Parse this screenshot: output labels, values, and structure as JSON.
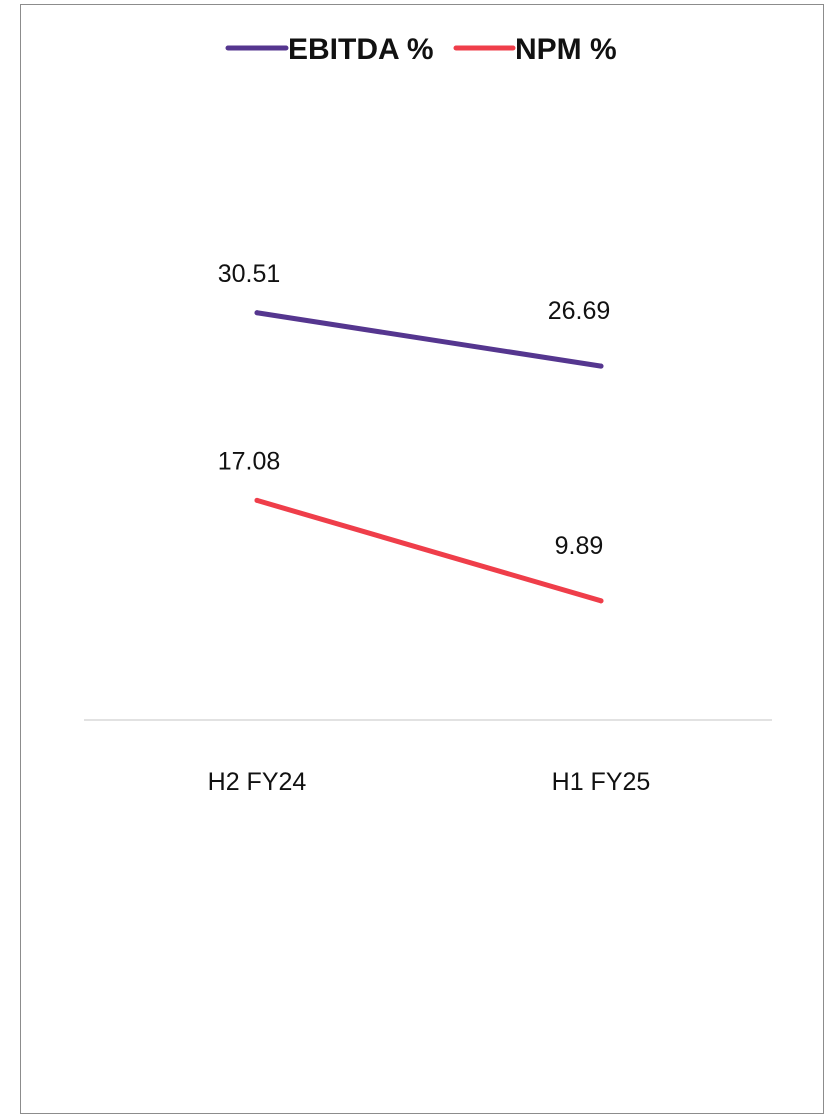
{
  "chart_data": {
    "type": "line",
    "categories": [
      "H2 FY24",
      "H1 FY25"
    ],
    "series": [
      {
        "name": "EBITDA %",
        "values": [
          30.51,
          26.69
        ],
        "color": "#55368f"
      },
      {
        "name": "NPM %",
        "values": [
          17.08,
          9.89
        ],
        "color": "#ef3e4a"
      }
    ],
    "legend_position": "top",
    "grid": false,
    "axis_color": "#d9d9d9"
  }
}
